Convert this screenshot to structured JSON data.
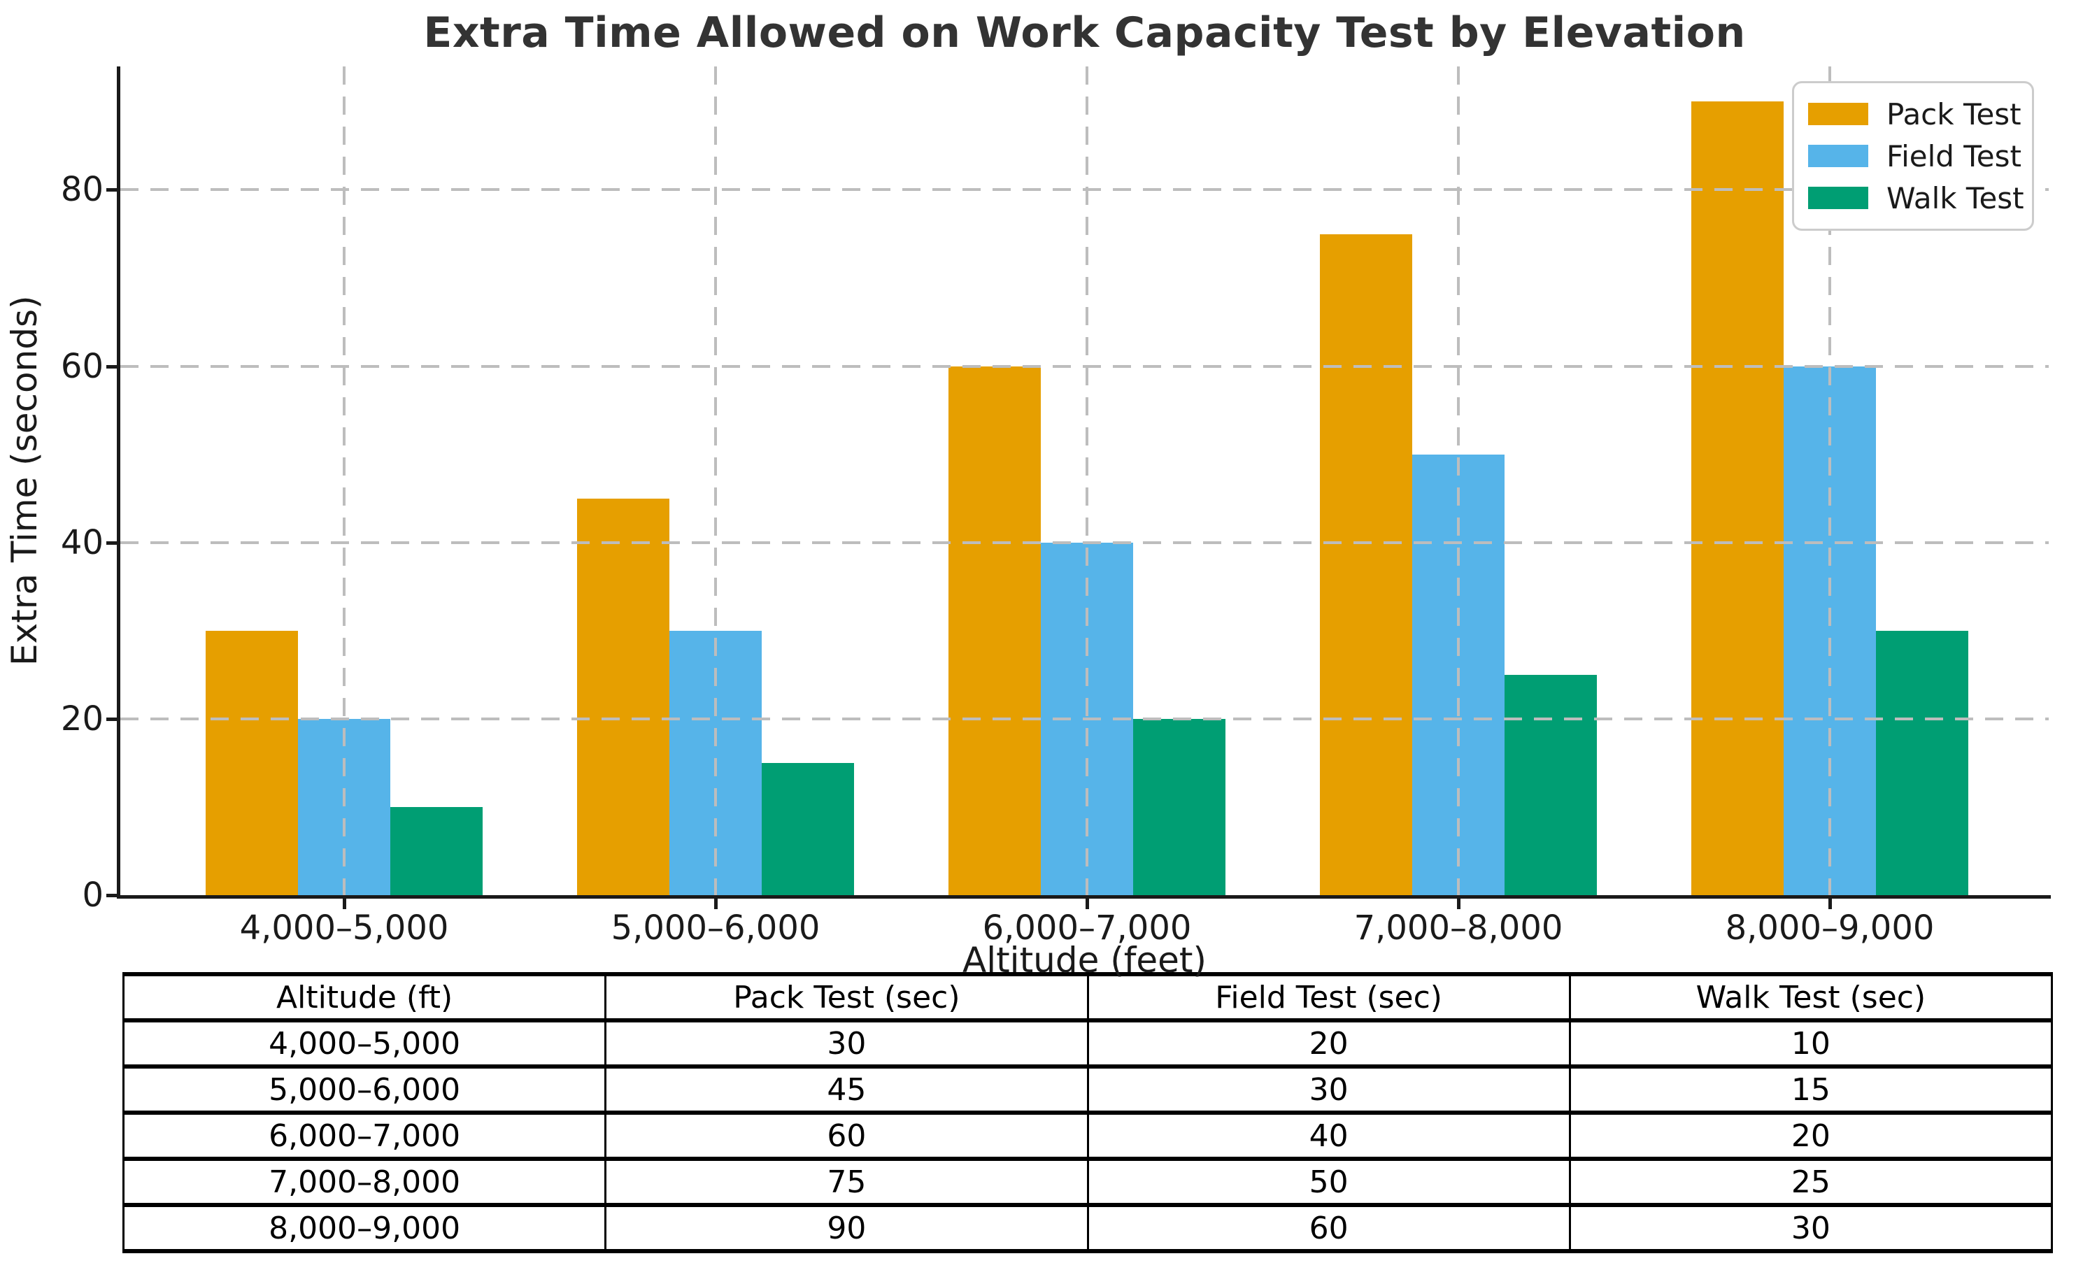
{
  "chart_data": {
    "type": "bar",
    "title": "Extra Time Allowed on Work Capacity Test by Elevation",
    "xlabel": "Altitude (feet)",
    "ylabel": "Extra Time (seconds)",
    "categories": [
      "4,000–5,000",
      "5,000–6,000",
      "6,000–7,000",
      "7,000–8,000",
      "8,000–9,000"
    ],
    "series": [
      {
        "name": "Pack Test",
        "color": "#E69F00",
        "values": [
          30,
          45,
          60,
          75,
          90
        ]
      },
      {
        "name": "Field Test",
        "color": "#56B4E9",
        "values": [
          20,
          30,
          40,
          50,
          60
        ]
      },
      {
        "name": "Walk Test",
        "color": "#009E73",
        "values": [
          10,
          15,
          20,
          25,
          30
        ]
      }
    ],
    "ylim": [
      0,
      94
    ],
    "yticks": [
      0,
      20,
      40,
      60,
      80
    ],
    "grid": true,
    "legend_position": "upper right"
  },
  "legend": {
    "items": [
      "Pack Test",
      "Field Test",
      "Walk Test"
    ]
  },
  "table": {
    "headers": [
      "Altitude (ft)",
      "Pack Test (sec)",
      "Field Test (sec)",
      "Walk Test (sec)"
    ],
    "rows": [
      [
        "4,000–5,000",
        "30",
        "20",
        "10"
      ],
      [
        "5,000–6,000",
        "45",
        "30",
        "15"
      ],
      [
        "6,000–7,000",
        "60",
        "40",
        "20"
      ],
      [
        "7,000–8,000",
        "75",
        "50",
        "25"
      ],
      [
        "8,000–9,000",
        "90",
        "60",
        "30"
      ]
    ]
  },
  "colors": {
    "pack_test": "#E69F00",
    "field_test": "#56B4E9",
    "walk_test": "#009E73",
    "grid": "#bdbdbd",
    "spine": "#1a1a1a",
    "title_text": "#333333",
    "legend_border": "#cccccc"
  }
}
